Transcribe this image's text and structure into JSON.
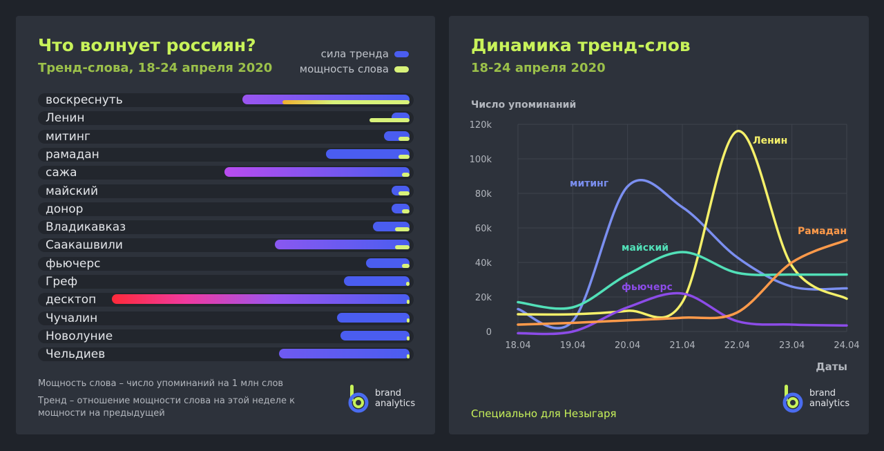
{
  "left": {
    "title": "Что волнует россиян?",
    "subtitle": "Тренд-слова, 18-24 апреля 2020",
    "legend": {
      "trend_label": "сила тренда",
      "power_label": "мощность слова",
      "trend_color": "#4a5df0",
      "power_color": "#d8f27a"
    },
    "note_power": "Мощность слова – число упоминаний на 1 млн слов",
    "note_trend": "Тренд – отношение мощности слова на этой неделе к мощности на предыдущей",
    "brand_line1": "brand",
    "brand_line2": "analytics"
  },
  "right": {
    "title": "Динамика тренд-слов",
    "subtitle": "18-24 апреля 2020",
    "footer": "Специально для Незыгаря",
    "brand_line1": "brand",
    "brand_line2": "analytics"
  },
  "chart_data": [
    {
      "type": "bar",
      "title": "Что волнует россиян?",
      "subtitle": "Тренд-слова, 18-24 апреля 2020",
      "categories": [
        "воскреснуть",
        "Ленин",
        "митинг",
        "рамадан",
        "сажа",
        "майский",
        "донор",
        "Владикавказ",
        "Саакашвили",
        "фьючерс",
        "Греф",
        "десктоп",
        "Чучалин",
        "Новолуние",
        "Чельдиев"
      ],
      "series": [
        {
          "name": "сила тренда",
          "values": [
            0.46,
            0.05,
            0.07,
            0.23,
            0.51,
            0.05,
            0.05,
            0.1,
            0.37,
            0.12,
            0.18,
            0.82,
            0.2,
            0.19,
            0.36
          ],
          "highlight_gradient": {
            "воскреснуть": "#9b55f0",
            "сажа": "#b94cf0",
            "Саакашвили": "#8a58f0",
            "десктоп": "#ff2a3a",
            "Чельдиев": "#6f5af0"
          }
        },
        {
          "name": "мощность слова",
          "values": [
            0.35,
            0.11,
            0.03,
            0.03,
            0.02,
            0.03,
            0.02,
            0.04,
            0.04,
            0.02,
            0.01,
            0.005,
            0.005,
            0.005,
            0.003
          ]
        }
      ]
    },
    {
      "type": "line",
      "title": "Динамика тренд-слов",
      "subtitle": "18-24 апреля 2020",
      "xlabel": "Даты",
      "ylabel": "Число упоминаний",
      "x": [
        "18.04",
        "19.04",
        "20.04",
        "21.04",
        "22.04",
        "23.04",
        "24.04"
      ],
      "ylim": [
        0,
        120000
      ],
      "yticks": [
        0,
        20000,
        40000,
        60000,
        80000,
        100000,
        120000
      ],
      "ytick_labels": [
        "0",
        "20k",
        "40k",
        "60k",
        "80k",
        "100k",
        "120k"
      ],
      "grid": true,
      "series": [
        {
          "name": "митинг",
          "color": "#7b8ff0",
          "values": [
            13000,
            6000,
            84000,
            72000,
            43000,
            26000,
            25000
          ]
        },
        {
          "name": "Ленин",
          "color": "#f5f06a",
          "values": [
            10000,
            10000,
            12000,
            17000,
            116000,
            38000,
            19000
          ]
        },
        {
          "name": "майский",
          "color": "#52e0b8",
          "values": [
            17000,
            14000,
            33000,
            46000,
            34000,
            33000,
            33000
          ]
        },
        {
          "name": "фьючерс",
          "color": "#8c4ce8",
          "values": [
            -1000,
            0,
            14000,
            22000,
            6000,
            4000,
            3500
          ]
        },
        {
          "name": "Рамадан",
          "color": "#ff9a4a",
          "values": [
            4000,
            5000,
            6500,
            8000,
            11000,
            40000,
            53000
          ]
        }
      ]
    }
  ]
}
